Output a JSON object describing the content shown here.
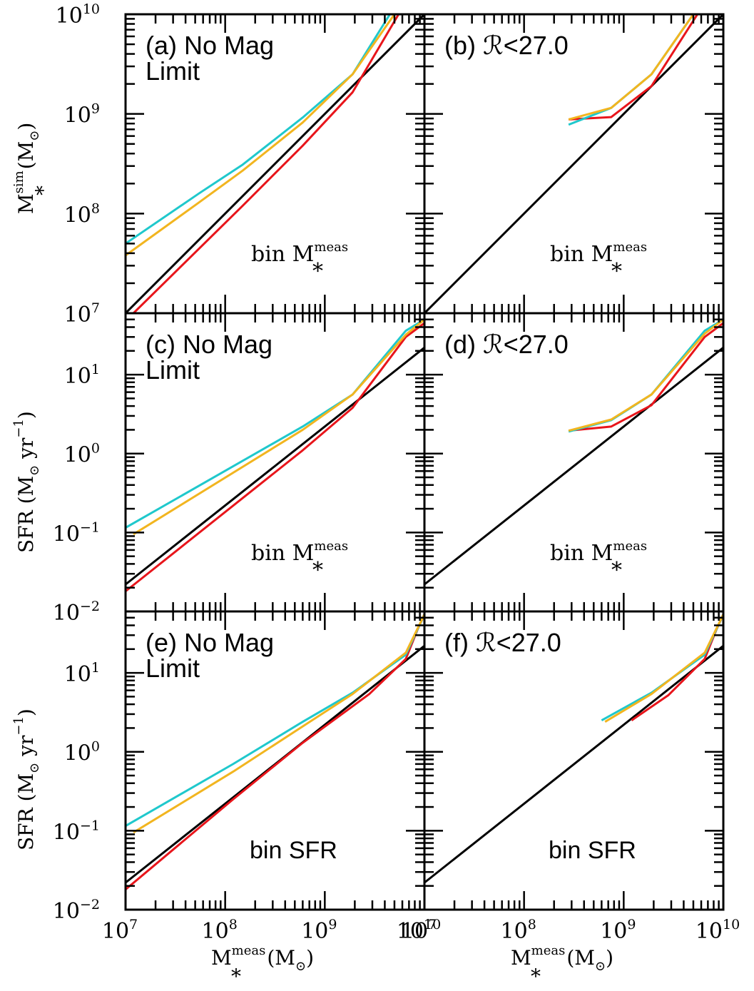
{
  "colors": {
    "black": "#000000",
    "red": "#e8151b",
    "cyan": "#1fc8cc",
    "orange": "#f2b51f"
  },
  "axes": {
    "x_label_main": "M",
    "x_label_sub": "*",
    "x_label_sup": "meas",
    "x_label_unit": "(M",
    "x_label_unit_close": ")",
    "y_label_top_main": "M",
    "y_label_top_sub": "*",
    "y_label_top_sup": "sim",
    "y_label_top_unit": "(M",
    "y_label_top_unit_close": ")",
    "y_label_sfr": "SFR (M",
    "y_label_sfr_unit": "yr",
    "y_label_sfr_exp": "−1",
    "y_label_sfr_close": ")",
    "sun_symbol": "⊙",
    "x_tick_base": "10",
    "x_tick_exps": [
      "7",
      "8",
      "9",
      "10"
    ],
    "top_y_tick_exps": [
      "7",
      "8",
      "9",
      "10"
    ],
    "sfr_y_tick_exps": [
      "−2",
      "−1",
      "0",
      "1"
    ]
  },
  "chart_data": [
    {
      "id": "a",
      "type": "line",
      "label": "(a) No Mag",
      "label2": "Limit",
      "annotation": "bin  M",
      "annotation_sub": "*",
      "annotation_sup": "meas",
      "xscale": "log",
      "yscale": "log",
      "xlim": [
        10000000.0,
        10000000000.0
      ],
      "ylim": [
        10000000.0,
        10000000000.0
      ],
      "series": [
        {
          "color": "black",
          "x": [
            10000000.0,
            10000000000.0
          ],
          "y": [
            10000000.0,
            10000000000.0
          ]
        },
        {
          "color": "red",
          "x": [
            12000000.0,
            150000000.0,
            600000000.0,
            1900000000.0,
            5500000000.0
          ],
          "y": [
            10000000.0,
            120000000.0,
            480000000.0,
            1650000000.0,
            10000000000.0
          ]
        },
        {
          "color": "cyan",
          "x": [
            10000000.0,
            55000000.0,
            150000000.0,
            600000000.0,
            1900000000.0,
            4500000000.0
          ],
          "y": [
            50000000.0,
            160000000.0,
            310000000.0,
            920000000.0,
            2500000000.0,
            10000000000.0
          ]
        },
        {
          "color": "orange",
          "x": [
            10000000.0,
            55000000.0,
            150000000.0,
            600000000.0,
            1900000000.0,
            5000000000.0
          ],
          "y": [
            38000000.0,
            130000000.0,
            270000000.0,
            820000000.0,
            2500000000.0,
            10000000000.0
          ]
        }
      ]
    },
    {
      "id": "b",
      "type": "line",
      "label": "(b) ℛ<27.0",
      "label2": "",
      "annotation": "bin  M",
      "annotation_sub": "*",
      "annotation_sup": "meas",
      "xscale": "log",
      "yscale": "log",
      "xlim": [
        10000000.0,
        10000000000.0
      ],
      "ylim": [
        10000000.0,
        10000000000.0
      ],
      "series": [
        {
          "color": "black",
          "x": [
            10000000.0,
            10000000000.0
          ],
          "y": [
            10000000.0,
            10000000000.0
          ]
        },
        {
          "color": "red",
          "x": [
            280000000.0,
            750000000.0,
            1900000000.0,
            5500000000.0
          ],
          "y": [
            880000000.0,
            930000000.0,
            1900000000.0,
            10000000000.0
          ]
        },
        {
          "color": "cyan",
          "x": [
            280000000.0,
            750000000.0,
            1900000000.0,
            5000000000.0
          ],
          "y": [
            780000000.0,
            1150000000.0,
            2500000000.0,
            10000000000.0
          ]
        },
        {
          "color": "orange",
          "x": [
            280000000.0,
            750000000.0,
            1900000000.0,
            5000000000.0
          ],
          "y": [
            880000000.0,
            1150000000.0,
            2500000000.0,
            10000000000.0
          ]
        }
      ]
    },
    {
      "id": "c",
      "type": "line",
      "label": "(c) No Mag",
      "label2": "Limit",
      "annotation": "bin  M",
      "annotation_sub": "*",
      "annotation_sup": "meas",
      "xscale": "log",
      "yscale": "log",
      "xlim": [
        10000000.0,
        10000000000.0
      ],
      "ylim": [
        0.01,
        60
      ],
      "series": [
        {
          "color": "black",
          "x": [
            10000000.0,
            10000000000.0
          ],
          "y": [
            0.022,
            22
          ]
        },
        {
          "color": "red",
          "x": [
            10000000.0,
            600000000.0,
            1900000000.0,
            6500000000.0,
            10000000000.0
          ],
          "y": [
            0.018,
            1.1,
            3.8,
            30,
            45
          ]
        },
        {
          "color": "cyan",
          "x": [
            10000000.0,
            600000000.0,
            1900000000.0,
            6500000000.0,
            10000000000.0
          ],
          "y": [
            0.115,
            2.2,
            5.6,
            36,
            50
          ]
        },
        {
          "color": "orange",
          "x": [
            12000000.0,
            600000000.0,
            1900000000.0,
            6500000000.0,
            10000000000.0
          ],
          "y": [
            0.095,
            2.0,
            5.6,
            32,
            50
          ]
        }
      ]
    },
    {
      "id": "d",
      "type": "line",
      "label": "(d) ℛ<27.0",
      "label2": "",
      "annotation": "bin  M",
      "annotation_sub": "*",
      "annotation_sup": "meas",
      "xscale": "log",
      "yscale": "log",
      "xlim": [
        10000000.0,
        10000000000.0
      ],
      "ylim": [
        0.01,
        60
      ],
      "series": [
        {
          "color": "black",
          "x": [
            10000000.0,
            10000000000.0
          ],
          "y": [
            0.022,
            22
          ]
        },
        {
          "color": "red",
          "x": [
            280000000.0,
            750000000.0,
            1900000000.0,
            6500000000.0,
            10000000000.0
          ],
          "y": [
            1.95,
            2.2,
            4.1,
            30,
            45
          ]
        },
        {
          "color": "cyan",
          "x": [
            280000000.0,
            750000000.0,
            1900000000.0,
            6500000000.0,
            10000000000.0
          ],
          "y": [
            1.9,
            2.65,
            5.6,
            36,
            50
          ]
        },
        {
          "color": "orange",
          "x": [
            280000000.0,
            750000000.0,
            1900000000.0,
            6500000000.0,
            10000000000.0
          ],
          "y": [
            1.95,
            2.7,
            5.6,
            33,
            50
          ]
        }
      ]
    },
    {
      "id": "e",
      "type": "line",
      "label": "(e) No Mag",
      "label2": "Limit",
      "annotation": "bin SFR",
      "annotation_sub": "",
      "annotation_sup": "",
      "xscale": "log",
      "yscale": "log",
      "xlim": [
        10000000.0,
        10000000000.0
      ],
      "ylim": [
        0.01,
        60
      ],
      "series": [
        {
          "color": "black",
          "x": [
            10000000.0,
            10000000000.0
          ],
          "y": [
            0.022,
            22
          ]
        },
        {
          "color": "red",
          "x": [
            10000000.0,
            120000000.0,
            600000000.0,
            2800000000.0,
            6500000000.0,
            8500000000.0,
            10000000000.0
          ],
          "y": [
            0.018,
            0.25,
            1.3,
            5.4,
            15,
            35,
            55
          ]
        },
        {
          "color": "cyan",
          "x": [
            10000000.0,
            120000000.0,
            600000000.0,
            1900000000.0,
            6500000000.0,
            10000000000.0
          ],
          "y": [
            0.115,
            0.7,
            2.4,
            5.6,
            17,
            55
          ]
        },
        {
          "color": "orange",
          "x": [
            12000000.0,
            120000000.0,
            600000000.0,
            1900000000.0,
            6500000000.0,
            10000000000.0
          ],
          "y": [
            0.095,
            0.56,
            2.1,
            5.4,
            18,
            55
          ]
        }
      ]
    },
    {
      "id": "f",
      "type": "line",
      "label": "(f) ℛ<27.0",
      "label2": "",
      "annotation": "bin SFR",
      "annotation_sub": "",
      "annotation_sup": "",
      "xscale": "log",
      "yscale": "log",
      "xlim": [
        10000000.0,
        10000000000.0
      ],
      "ylim": [
        0.01,
        60
      ],
      "series": [
        {
          "color": "black",
          "x": [
            10000000.0,
            10000000000.0
          ],
          "y": [
            0.022,
            22
          ]
        },
        {
          "color": "red",
          "x": [
            1200000000.0,
            2800000000.0,
            6500000000.0,
            8500000000.0,
            10000000000.0
          ],
          "y": [
            2.5,
            5.2,
            15,
            35,
            55
          ]
        },
        {
          "color": "cyan",
          "x": [
            600000000.0,
            1900000000.0,
            6500000000.0,
            10000000000.0
          ],
          "y": [
            2.5,
            5.6,
            17,
            55
          ]
        },
        {
          "color": "orange",
          "x": [
            650000000.0,
            1900000000.0,
            6500000000.0,
            10000000000.0
          ],
          "y": [
            2.4,
            5.4,
            18,
            55
          ]
        }
      ]
    }
  ]
}
